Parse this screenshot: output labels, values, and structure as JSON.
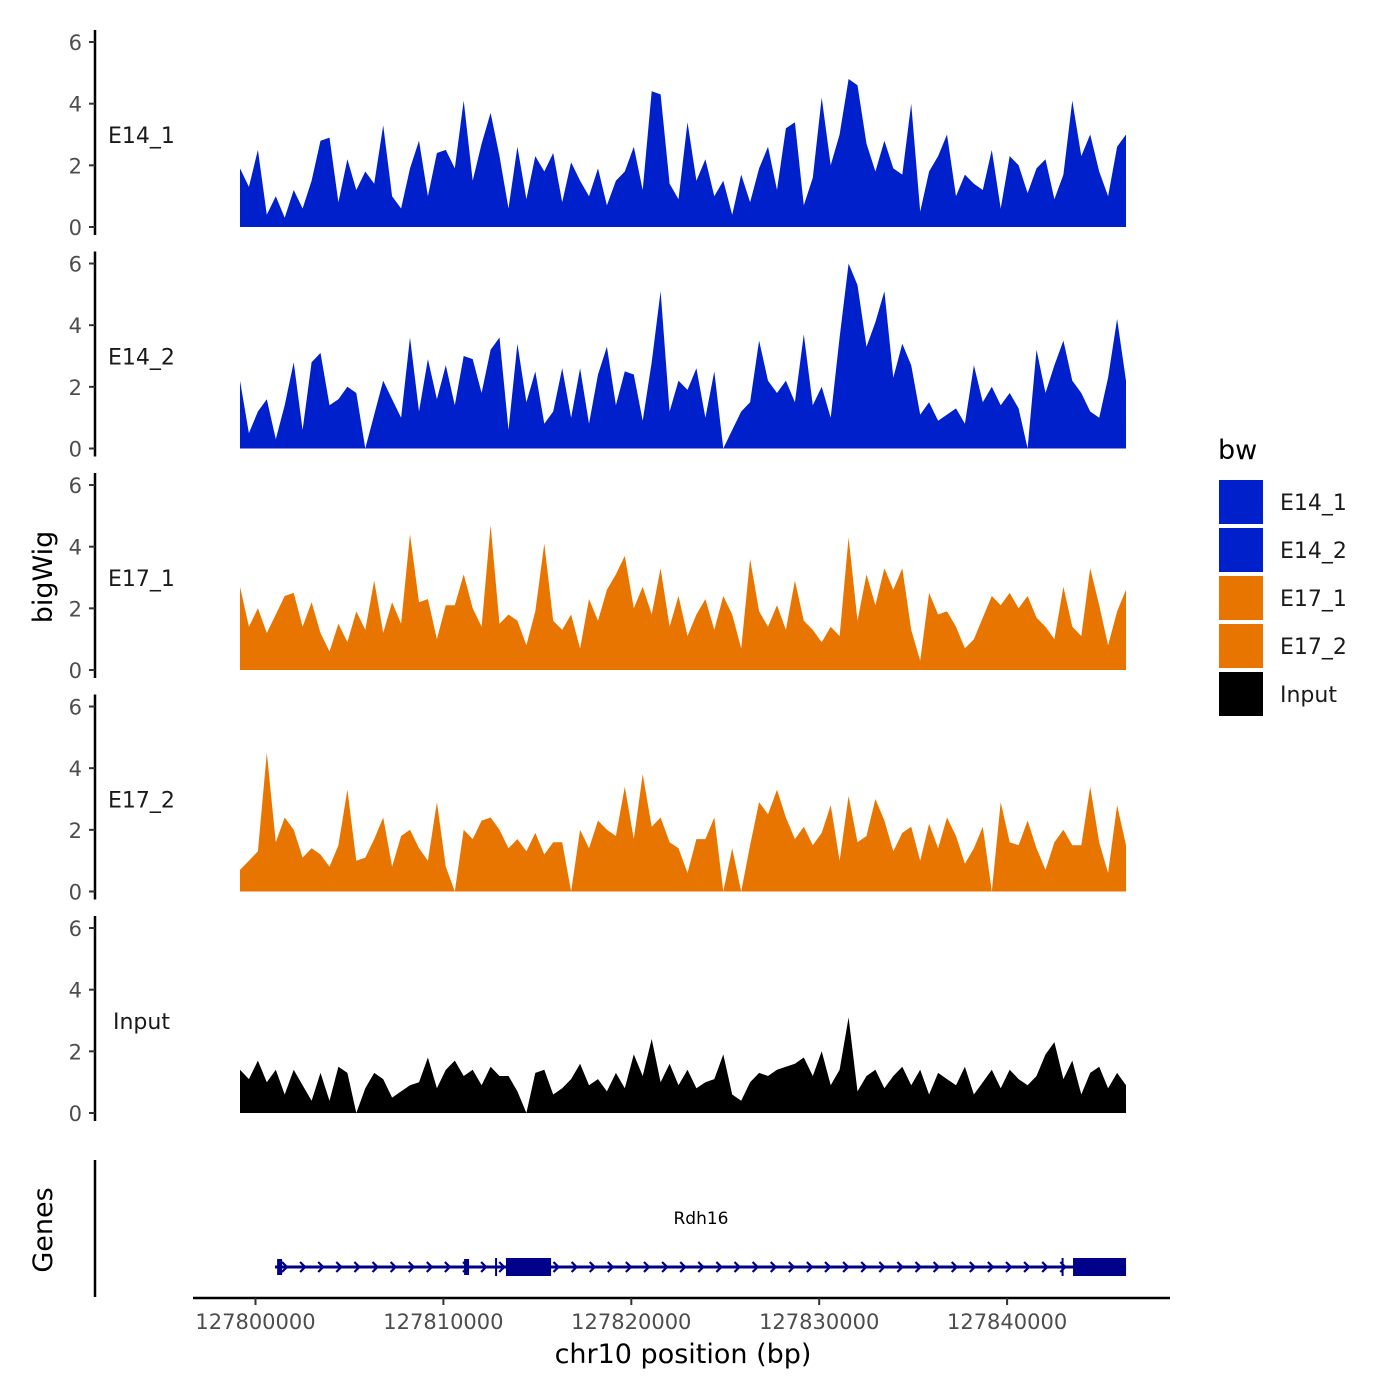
{
  "chart_data": {
    "type": "area",
    "ylabel": "bigWig",
    "xlabel": "chr10 position (bp)",
    "gene_track_label": "Genes",
    "ylim": [
      0,
      6
    ],
    "yticks": [
      "0",
      "2",
      "4",
      "6"
    ],
    "xlim": [
      127799175,
      127846330
    ],
    "xticks": [
      127800000,
      127810000,
      127820000,
      127830000,
      127840000
    ],
    "xtick_labels": [
      "127800000",
      "127810000",
      "127820000",
      "127830000",
      "127840000"
    ],
    "legend": {
      "title": "bw",
      "position": "right",
      "entries": [
        {
          "label": "E14_1",
          "color": "#0020CC"
        },
        {
          "label": "E14_2",
          "color": "#0020CC"
        },
        {
          "label": "E17_1",
          "color": "#E87500"
        },
        {
          "label": "E17_2",
          "color": "#E87500"
        },
        {
          "label": "Input",
          "color": "#000000"
        }
      ]
    },
    "series": [
      {
        "name": "E14_1",
        "color": "#0020CC",
        "values": [
          1.9,
          1.3,
          2.5,
          0.4,
          1.0,
          0.3,
          1.2,
          0.6,
          1.5,
          2.8,
          2.9,
          0.8,
          2.2,
          1.2,
          1.8,
          1.4,
          3.3,
          1.0,
          0.6,
          1.9,
          2.8,
          1.0,
          2.4,
          2.5,
          1.9,
          4.1,
          1.5,
          2.7,
          3.7,
          2.3,
          0.6,
          2.6,
          0.9,
          2.3,
          1.8,
          2.4,
          0.8,
          2.1,
          1.5,
          1.0,
          1.9,
          0.7,
          1.5,
          1.8,
          2.6,
          1.2,
          4.4,
          4.3,
          1.4,
          0.9,
          3.4,
          1.5,
          2.2,
          1.0,
          1.5,
          0.4,
          1.7,
          0.8,
          1.9,
          2.6,
          1.2,
          3.2,
          3.4,
          0.7,
          1.6,
          4.2,
          2.0,
          3.0,
          4.8,
          4.6,
          2.7,
          1.8,
          2.8,
          1.9,
          1.7,
          4.0,
          0.5,
          1.8,
          2.3,
          3.0,
          1.0,
          1.7,
          1.4,
          1.2,
          2.5,
          0.6,
          2.3,
          2.0,
          1.1,
          1.9,
          2.2,
          0.9,
          1.7,
          4.1,
          2.3,
          3.0,
          1.8,
          1.0,
          2.6,
          3.0
        ]
      },
      {
        "name": "E14_2",
        "color": "#0020CC",
        "values": [
          2.2,
          0.5,
          1.2,
          1.6,
          0.3,
          1.4,
          2.8,
          0.6,
          2.8,
          3.1,
          1.4,
          1.6,
          2.0,
          1.8,
          0.0,
          1.1,
          2.2,
          1.6,
          1.0,
          3.6,
          1.2,
          2.9,
          1.6,
          2.7,
          1.4,
          3.0,
          2.9,
          1.8,
          3.2,
          3.6,
          0.6,
          3.4,
          1.5,
          2.5,
          0.8,
          1.2,
          2.6,
          1.0,
          2.6,
          0.8,
          2.4,
          3.3,
          1.4,
          2.5,
          2.4,
          0.9,
          2.8,
          5.1,
          1.2,
          2.2,
          1.9,
          2.6,
          1.0,
          2.5,
          0.0,
          0.6,
          1.2,
          1.5,
          3.5,
          2.2,
          1.8,
          2.2,
          1.5,
          3.7,
          1.4,
          2.0,
          1.0,
          3.6,
          6.0,
          5.3,
          3.3,
          4.1,
          5.1,
          2.3,
          3.4,
          2.7,
          1.1,
          1.5,
          0.9,
          1.1,
          1.3,
          0.8,
          2.7,
          1.5,
          2.0,
          1.4,
          1.8,
          1.3,
          0.0,
          3.2,
          1.8,
          2.7,
          3.5,
          2.2,
          1.8,
          1.2,
          1.0,
          2.3,
          4.2,
          2.2
        ]
      },
      {
        "name": "E17_1",
        "color": "#E87500",
        "values": [
          2.7,
          1.4,
          2.0,
          1.2,
          1.8,
          2.4,
          2.5,
          1.4,
          2.2,
          1.2,
          0.6,
          1.5,
          0.9,
          1.9,
          1.3,
          2.9,
          1.2,
          2.2,
          1.5,
          4.4,
          2.2,
          2.3,
          1.0,
          2.1,
          2.1,
          3.1,
          2.0,
          1.4,
          4.7,
          1.5,
          1.8,
          1.6,
          0.8,
          1.9,
          4.1,
          1.6,
          1.3,
          1.8,
          0.7,
          2.3,
          1.6,
          2.6,
          3.1,
          3.7,
          2.0,
          2.7,
          1.8,
          3.3,
          1.4,
          2.4,
          1.1,
          1.8,
          2.3,
          1.3,
          2.4,
          1.8,
          0.7,
          3.6,
          1.9,
          1.4,
          2.1,
          1.3,
          2.9,
          1.6,
          1.3,
          0.9,
          1.4,
          1.1,
          4.3,
          1.6,
          3.1,
          2.1,
          3.3,
          2.6,
          3.3,
          1.3,
          0.3,
          2.5,
          1.8,
          1.9,
          1.4,
          0.7,
          1.0,
          1.7,
          2.4,
          2.1,
          2.5,
          2.0,
          2.4,
          1.7,
          1.4,
          1.0,
          2.7,
          1.4,
          1.1,
          3.3,
          2.1,
          0.8,
          1.9,
          2.6
        ]
      },
      {
        "name": "E17_2",
        "color": "#E87500",
        "values": [
          0.7,
          1.0,
          1.3,
          4.5,
          1.6,
          2.4,
          2.0,
          1.1,
          1.4,
          1.2,
          0.8,
          1.5,
          3.3,
          1.0,
          1.1,
          1.7,
          2.4,
          0.8,
          1.8,
          2.0,
          1.4,
          1.0,
          2.9,
          0.8,
          0.0,
          2.0,
          1.7,
          2.3,
          2.4,
          2.0,
          1.4,
          1.7,
          1.3,
          1.9,
          1.2,
          1.6,
          1.6,
          0.0,
          2.0,
          1.4,
          2.3,
          2.0,
          1.8,
          3.4,
          1.7,
          3.8,
          2.1,
          2.4,
          1.6,
          1.4,
          0.6,
          1.7,
          1.7,
          2.4,
          0.0,
          1.4,
          0.0,
          1.5,
          2.9,
          2.5,
          3.3,
          2.4,
          1.7,
          2.1,
          1.5,
          1.9,
          2.8,
          1.0,
          3.1,
          1.6,
          1.8,
          3.0,
          2.3,
          1.3,
          1.9,
          2.1,
          1.0,
          2.2,
          1.4,
          2.4,
          1.8,
          0.9,
          1.4,
          2.1,
          0.0,
          2.9,
          1.6,
          1.5,
          2.3,
          1.4,
          0.7,
          1.6,
          2.0,
          1.5,
          1.5,
          3.4,
          1.6,
          0.6,
          2.8,
          1.5
        ]
      },
      {
        "name": "Input",
        "color": "#000000",
        "values": [
          1.4,
          1.1,
          1.7,
          1.0,
          1.4,
          0.6,
          1.4,
          0.9,
          0.4,
          1.3,
          0.4,
          1.5,
          1.3,
          0.0,
          0.8,
          1.3,
          1.1,
          0.5,
          0.7,
          0.9,
          1.0,
          1.8,
          0.8,
          1.4,
          1.7,
          1.2,
          1.4,
          0.9,
          1.5,
          1.2,
          1.2,
          0.7,
          0.0,
          1.3,
          1.4,
          0.6,
          0.8,
          1.1,
          1.6,
          0.9,
          1.1,
          0.7,
          1.3,
          0.8,
          1.9,
          1.2,
          2.4,
          1.0,
          1.6,
          0.9,
          1.4,
          0.8,
          1.0,
          1.1,
          1.9,
          0.6,
          0.4,
          1.0,
          1.3,
          1.2,
          1.4,
          1.5,
          1.6,
          1.8,
          1.2,
          2.0,
          0.9,
          1.4,
          3.1,
          0.7,
          1.2,
          1.4,
          0.8,
          1.2,
          1.5,
          0.9,
          1.4,
          0.6,
          1.3,
          1.1,
          0.9,
          1.5,
          0.6,
          1.0,
          1.4,
          0.8,
          1.4,
          1.1,
          0.9,
          1.2,
          1.9,
          2.3,
          1.1,
          1.7,
          0.6,
          1.3,
          1.5,
          0.8,
          1.3,
          0.9
        ]
      }
    ],
    "gene": {
      "name": "Rdh16",
      "strand": "+",
      "color": "#00008B",
      "start": 127801250,
      "end": 127846330,
      "exons": [
        [
          127801150,
          127801350,
          "thin"
        ],
        [
          127811100,
          127811250,
          "thin"
        ],
        [
          127812750,
          127812850,
          "line"
        ],
        [
          127813330,
          127815730,
          "thick"
        ],
        [
          127842900,
          127842980,
          "line"
        ],
        [
          127843510,
          127846330,
          "thick"
        ]
      ]
    }
  }
}
